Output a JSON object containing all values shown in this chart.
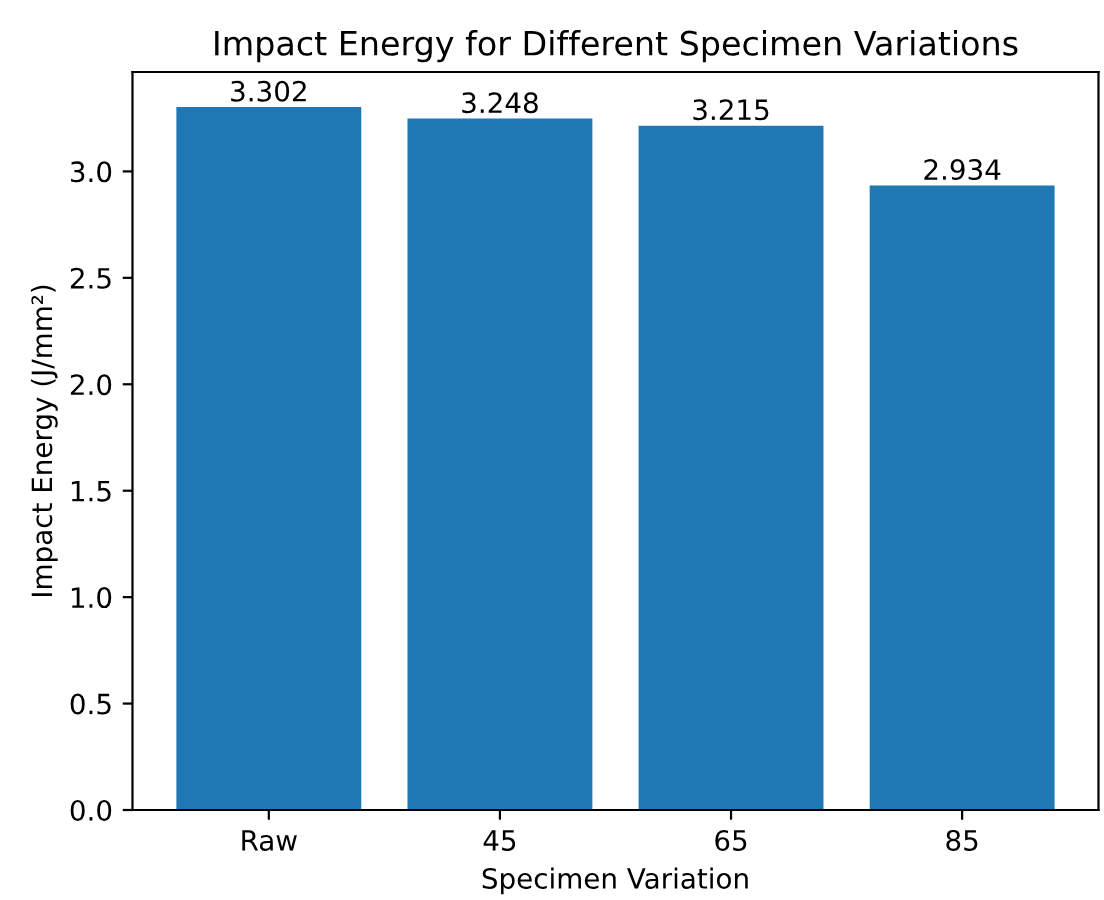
{
  "chart_data": {
    "type": "bar",
    "title": "Impact Energy for Different Specimen Variations",
    "xlabel": "Specimen Variation",
    "ylabel": "Impact Energy (J/mm²)",
    "categories": [
      "Raw",
      "45",
      "65",
      "85"
    ],
    "values": [
      3.302,
      3.248,
      3.215,
      2.934
    ],
    "color": "#1f77b4",
    "data_labels": true,
    "grid": false,
    "ylim": [
      0,
      3.467
    ],
    "yticks": [
      {
        "value": 0,
        "label": "0.0"
      },
      {
        "value": 0.5,
        "label": "0.5"
      },
      {
        "value": 1,
        "label": "1.0"
      },
      {
        "value": 1.5,
        "label": "1.5"
      },
      {
        "value": 2,
        "label": "2.0"
      },
      {
        "value": 2.5,
        "label": "2.5"
      },
      {
        "value": 3,
        "label": "3.0"
      }
    ]
  }
}
